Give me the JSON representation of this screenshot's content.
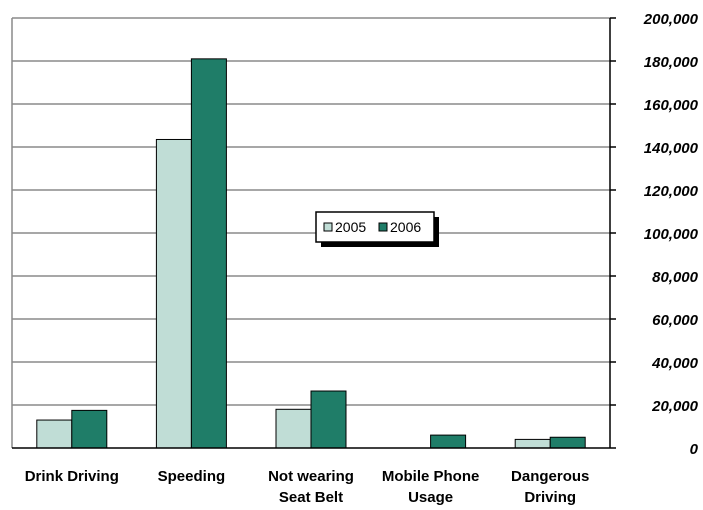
{
  "chart_data": {
    "type": "bar",
    "title": "",
    "xlabel": "",
    "ylabel": "",
    "categories": [
      [
        "Drink Driving"
      ],
      [
        "Speeding"
      ],
      [
        "Not wearing",
        "Seat Belt"
      ],
      [
        "Mobile Phone",
        "Usage"
      ],
      [
        "Dangerous",
        "Driving"
      ]
    ],
    "series": [
      {
        "name": "2005",
        "color": "#c0ddd6",
        "values": [
          13000,
          143500,
          18000,
          0,
          4000
        ]
      },
      {
        "name": "2006",
        "color": "#1f7d68",
        "values": [
          17500,
          181000,
          26500,
          6000,
          5000
        ]
      }
    ],
    "ylim": [
      0,
      200000
    ],
    "yticks": [
      0,
      20000,
      40000,
      60000,
      80000,
      100000,
      120000,
      140000,
      160000,
      180000,
      200000
    ],
    "ytick_labels": [
      "0",
      "20,000",
      "40,000",
      "60,000",
      "80,000",
      "100,000",
      "120,000",
      "140,000",
      "160,000",
      "180,000",
      "200,000"
    ],
    "y_axis_side": "right",
    "grid": true,
    "legend_position": "center"
  }
}
